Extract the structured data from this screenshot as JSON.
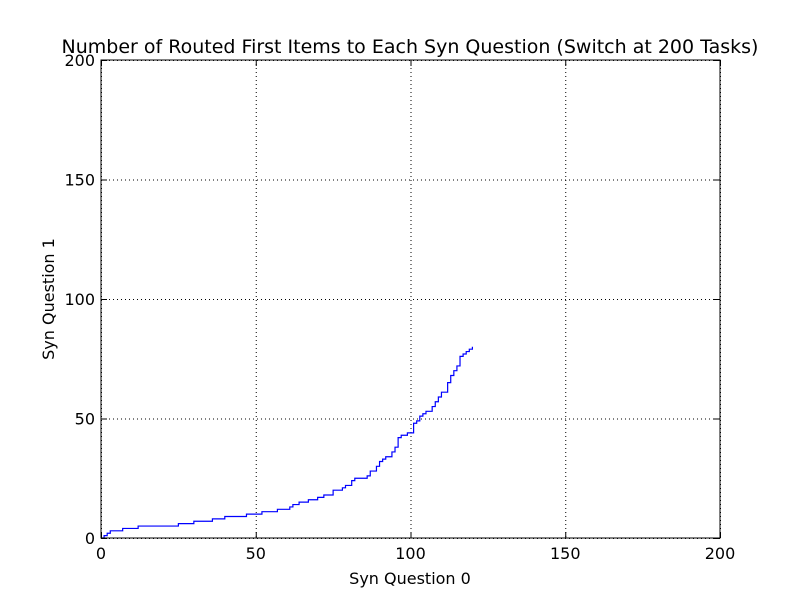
{
  "chart_data": {
    "type": "line",
    "title": "Number of Routed First Items to Each Syn Question (Switch at 200 Tasks)",
    "xlabel": "Syn Question 0",
    "ylabel": "Syn Question 1",
    "xlim": [
      0,
      200
    ],
    "ylim": [
      0,
      200
    ],
    "xticks": [
      0,
      50,
      100,
      150,
      200
    ],
    "yticks": [
      0,
      50,
      100,
      150,
      200
    ],
    "grid": true,
    "line_style": "step",
    "series": [
      {
        "color": "#0000ff",
        "points": [
          [
            0,
            0
          ],
          [
            1,
            0
          ],
          [
            1,
            1
          ],
          [
            2,
            1
          ],
          [
            2,
            2
          ],
          [
            3,
            2
          ],
          [
            3,
            3
          ],
          [
            7,
            3
          ],
          [
            7,
            4
          ],
          [
            12,
            4
          ],
          [
            12,
            5
          ],
          [
            25,
            5
          ],
          [
            25,
            6
          ],
          [
            30,
            6
          ],
          [
            30,
            7
          ],
          [
            36,
            7
          ],
          [
            36,
            8
          ],
          [
            40,
            8
          ],
          [
            40,
            9
          ],
          [
            47,
            9
          ],
          [
            47,
            10
          ],
          [
            52,
            10
          ],
          [
            52,
            11
          ],
          [
            57,
            11
          ],
          [
            57,
            12
          ],
          [
            61,
            12
          ],
          [
            61,
            13
          ],
          [
            62,
            13
          ],
          [
            62,
            14
          ],
          [
            64,
            14
          ],
          [
            64,
            15
          ],
          [
            67,
            15
          ],
          [
            67,
            16
          ],
          [
            70,
            16
          ],
          [
            70,
            17
          ],
          [
            72,
            17
          ],
          [
            72,
            18
          ],
          [
            75,
            18
          ],
          [
            75,
            20
          ],
          [
            78,
            20
          ],
          [
            78,
            21
          ],
          [
            79,
            21
          ],
          [
            79,
            22
          ],
          [
            81,
            22
          ],
          [
            81,
            24
          ],
          [
            82,
            24
          ],
          [
            82,
            25
          ],
          [
            86,
            25
          ],
          [
            86,
            26
          ],
          [
            87,
            26
          ],
          [
            87,
            28
          ],
          [
            89,
            28
          ],
          [
            89,
            30
          ],
          [
            90,
            30
          ],
          [
            90,
            32
          ],
          [
            91,
            32
          ],
          [
            91,
            33
          ],
          [
            92,
            33
          ],
          [
            92,
            34
          ],
          [
            94,
            34
          ],
          [
            94,
            36
          ],
          [
            95,
            36
          ],
          [
            95,
            38
          ],
          [
            96,
            38
          ],
          [
            96,
            42
          ],
          [
            97,
            42
          ],
          [
            97,
            43
          ],
          [
            99,
            43
          ],
          [
            99,
            44
          ],
          [
            101,
            44
          ],
          [
            101,
            48
          ],
          [
            102,
            48
          ],
          [
            102,
            49
          ],
          [
            103,
            49
          ],
          [
            103,
            51
          ],
          [
            104,
            51
          ],
          [
            104,
            52
          ],
          [
            105,
            52
          ],
          [
            105,
            53
          ],
          [
            107,
            53
          ],
          [
            107,
            55
          ],
          [
            108,
            55
          ],
          [
            108,
            57
          ],
          [
            109,
            57
          ],
          [
            109,
            59
          ],
          [
            110,
            59
          ],
          [
            110,
            61
          ],
          [
            112,
            61
          ],
          [
            112,
            65
          ],
          [
            113,
            65
          ],
          [
            113,
            68
          ],
          [
            114,
            68
          ],
          [
            114,
            70
          ],
          [
            115,
            70
          ],
          [
            115,
            72
          ],
          [
            116,
            72
          ],
          [
            116,
            76
          ],
          [
            117,
            76
          ],
          [
            117,
            77
          ],
          [
            118,
            77
          ],
          [
            118,
            78
          ],
          [
            119,
            78
          ],
          [
            119,
            79
          ],
          [
            120,
            79
          ],
          [
            120,
            80
          ]
        ]
      }
    ]
  }
}
